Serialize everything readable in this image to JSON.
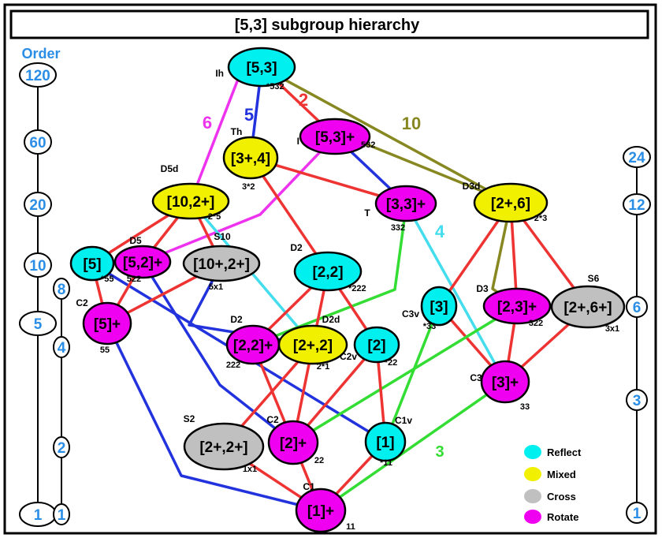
{
  "title": "[5,3] subgroup hierarchy",
  "order_heading": "Order",
  "order_scales": [
    {
      "values": [
        "120",
        "60",
        "20",
        "10",
        "5",
        "1"
      ]
    },
    {
      "values": [
        "8",
        "4",
        "2",
        "1"
      ]
    },
    {
      "values": [
        "24",
        "12",
        "6",
        "3",
        "1"
      ]
    }
  ],
  "nodes": [
    {
      "id": "n53",
      "text": "[5,3]",
      "kind": "reflect",
      "label": "Ih",
      "sym": "*532"
    },
    {
      "id": "n53p",
      "text": "[5,3]+",
      "kind": "rotate",
      "label": "I",
      "sym": "532"
    },
    {
      "id": "n3p4",
      "text": "[3+,4]",
      "kind": "mixed",
      "label": "Th",
      "sym": "3*2"
    },
    {
      "id": "n102p",
      "text": "[10,2+]",
      "kind": "mixed",
      "label": "D5d",
      "sym": "2*5"
    },
    {
      "id": "n33p",
      "text": "[3,3]+",
      "kind": "rotate",
      "label": "T",
      "sym": "332"
    },
    {
      "id": "n2p6",
      "text": "[2+,6]",
      "kind": "mixed",
      "label": "D3d",
      "sym": "2*3"
    },
    {
      "id": "n5",
      "text": "[5]",
      "kind": "reflect",
      "label": "",
      "sym": "*55"
    },
    {
      "id": "n52p",
      "text": "[5,2]+",
      "kind": "rotate",
      "label": "D5",
      "sym": "522"
    },
    {
      "id": "n10p2p",
      "text": "[10+,2+]",
      "kind": "cross",
      "label": "S10",
      "sym": "5x1"
    },
    {
      "id": "n22",
      "text": "[2,2]",
      "kind": "reflect",
      "label": "D2",
      "sym": "*222"
    },
    {
      "id": "n5p",
      "text": "[5]+",
      "kind": "rotate",
      "label": "C2",
      "sym": "55"
    },
    {
      "id": "n3",
      "text": "[3]",
      "kind": "reflect",
      "label": "C3v",
      "sym": "*33"
    },
    {
      "id": "n23p",
      "text": "[2,3]+",
      "kind": "rotate",
      "label": "D3",
      "sym": "322"
    },
    {
      "id": "n2p6p",
      "text": "[2+,6+]",
      "kind": "cross",
      "label": "S6",
      "sym": "3x1"
    },
    {
      "id": "n22p",
      "text": "[2,2]+",
      "kind": "rotate",
      "label": "D2",
      "sym": "222"
    },
    {
      "id": "n2p2",
      "text": "[2+,2]",
      "kind": "mixed",
      "label": "D2d",
      "sym": "2*1"
    },
    {
      "id": "n2",
      "text": "[2]",
      "kind": "reflect",
      "label": "C2v",
      "sym": "*22"
    },
    {
      "id": "n3p",
      "text": "[3]+",
      "kind": "rotate",
      "label": "C3",
      "sym": "33"
    },
    {
      "id": "n2p2p",
      "text": "[2+,2+]",
      "kind": "cross",
      "label": "S2",
      "sym": "1x1"
    },
    {
      "id": "n2p",
      "text": "[2]+",
      "kind": "rotate",
      "label": "C2",
      "sym": "22"
    },
    {
      "id": "n1",
      "text": "[1]",
      "kind": "reflect",
      "label": "C1v",
      "sym": "*11"
    },
    {
      "id": "n1p",
      "text": "[1]+",
      "kind": "rotate",
      "label": "C1",
      "sym": "11"
    }
  ],
  "index_labels": [
    {
      "text": "6",
      "color": "#ee33ee"
    },
    {
      "text": "5",
      "color": "#2233dd"
    },
    {
      "text": "2",
      "color": "#ee3333"
    },
    {
      "text": "10",
      "color": "#888822"
    },
    {
      "text": "4",
      "color": "#44ddee"
    },
    {
      "text": "3",
      "color": "#33dd33"
    }
  ],
  "legend": [
    {
      "label": "Reflect",
      "color": "#00f0f0"
    },
    {
      "label": "Mixed",
      "color": "#f0f000"
    },
    {
      "label": "Cross",
      "color": "#c0c0c0"
    },
    {
      "label": "Rotate",
      "color": "#f000f0"
    }
  ],
  "colors": {
    "reflect": "#00f0f0",
    "mixed": "#f0f000",
    "cross": "#c0c0c0",
    "rotate": "#f000f0",
    "red": "#ee3333",
    "blue": "#2233dd",
    "magenta": "#ee33ee",
    "olive": "#888822",
    "cyan": "#44ddee",
    "green": "#33dd33",
    "order_text": "#2b8ee6"
  }
}
